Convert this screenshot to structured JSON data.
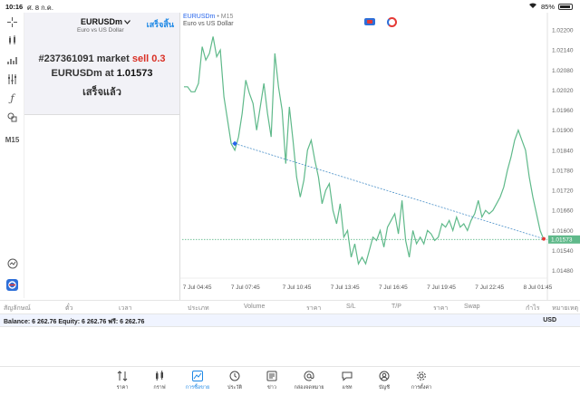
{
  "status": {
    "time": "10:16",
    "date": "ศ. 8 ก.ค.",
    "wifi": "wifi-icon",
    "battery": "85%"
  },
  "toolbar": {
    "timeframe": "M15"
  },
  "order_panel": {
    "symbol": "EURUSDm",
    "description": "Euro vs US Dollar",
    "done_label": "เสร็จสิ้น",
    "ticket": "#237361091",
    "order_type": "market",
    "action": "sell 0.3",
    "symbol_at": "EURUSDm at",
    "price": "1.01573",
    "result": "เสร็จแล้ว"
  },
  "chart_header": {
    "symbol": "EURUSDm",
    "timeframe": "M15",
    "description": "Euro vs US Dollar"
  },
  "chart_data": {
    "type": "line",
    "y_ticks": [
      "1.02200",
      "1.02140",
      "1.02080",
      "1.02020",
      "1.01960",
      "1.01900",
      "1.01840",
      "1.01780",
      "1.01720",
      "1.01660",
      "1.01600",
      "1.01540",
      "1.01480"
    ],
    "y_range": [
      1.0146,
      1.0223
    ],
    "x_ticks": [
      "7 Jul 04:45",
      "7 Jul 07:45",
      "7 Jul 10:45",
      "7 Jul 13:45",
      "7 Jul 16:45",
      "7 Jul 19:45",
      "7 Jul 22:45",
      "8 Jul 01:45"
    ],
    "current_price": "1.01573",
    "current_price_value": 1.01573,
    "trend_line": {
      "start_index": 14,
      "start_value": 1.0186,
      "end_index": 99,
      "end_value": 1.01575
    },
    "values": [
      1.0203,
      1.0203,
      1.02015,
      1.02015,
      1.0204,
      1.0215,
      1.0211,
      1.0213,
      1.0218,
      1.0212,
      1.0214,
      1.02,
      1.0193,
      1.0186,
      1.0184,
      1.0188,
      1.0195,
      1.0205,
      1.0201,
      1.0198,
      1.019,
      1.0197,
      1.0204,
      1.0195,
      1.0188,
      1.0213,
      1.0203,
      1.0196,
      1.018,
      1.0197,
      1.0187,
      1.0176,
      1.017,
      1.0175,
      1.0184,
      1.0187,
      1.0181,
      1.0176,
      1.0168,
      1.0172,
      1.0174,
      1.0166,
      1.0162,
      1.0168,
      1.0158,
      1.016,
      1.0152,
      1.0156,
      1.015,
      1.0152,
      1.015,
      1.0154,
      1.0158,
      1.0157,
      1.016,
      1.0155,
      1.0161,
      1.0163,
      1.0165,
      1.0159,
      1.0169,
      1.0157,
      1.0152,
      1.016,
      1.0156,
      1.0158,
      1.0156,
      1.016,
      1.0159,
      1.0157,
      1.0158,
      1.0162,
      1.0161,
      1.0163,
      1.016,
      1.0164,
      1.0161,
      1.0162,
      1.016,
      1.0163,
      1.0165,
      1.0169,
      1.0164,
      1.0166,
      1.0165,
      1.0166,
      1.0168,
      1.017,
      1.0173,
      1.0178,
      1.0182,
      1.0187,
      1.019,
      1.0187,
      1.0184,
      1.0176,
      1.017,
      1.0165,
      1.016,
      1.01573
    ]
  },
  "columns": [
    "สัญลักษณ์",
    "ตั๋ว",
    "เวลา",
    "ประเภท",
    "Volume",
    "ราคา",
    "S/L",
    "T/P",
    "ราคา",
    "Swap",
    "กำไร",
    "หมายเหตุ"
  ],
  "balance": {
    "text": "Balance: 6 262.76 Equity: 6 262.76 ฟรี: 6 262.76",
    "currency": "USD"
  },
  "tabs": [
    {
      "label": "ราคา",
      "icon": "arrows-updown-icon"
    },
    {
      "label": "กราฟ",
      "icon": "candles-icon"
    },
    {
      "label": "การซื้อขาย",
      "icon": "trade-chart-icon",
      "active": true
    },
    {
      "label": "ประวัติ",
      "icon": "clock-icon"
    },
    {
      "label": "ข่าว",
      "icon": "news-icon"
    },
    {
      "label": "กล่องจดหมาย",
      "icon": "at-icon"
    },
    {
      "label": "แชท",
      "icon": "chat-icon"
    },
    {
      "label": "บัญชี",
      "icon": "account-icon"
    },
    {
      "label": "การตั้งค่า",
      "icon": "gear-icon"
    }
  ],
  "colors": {
    "line": "#5fb98a",
    "trend": "#4a90c8",
    "price_line": "#5fb98a",
    "accent": "#1e88e5",
    "sell": "#d93025"
  }
}
